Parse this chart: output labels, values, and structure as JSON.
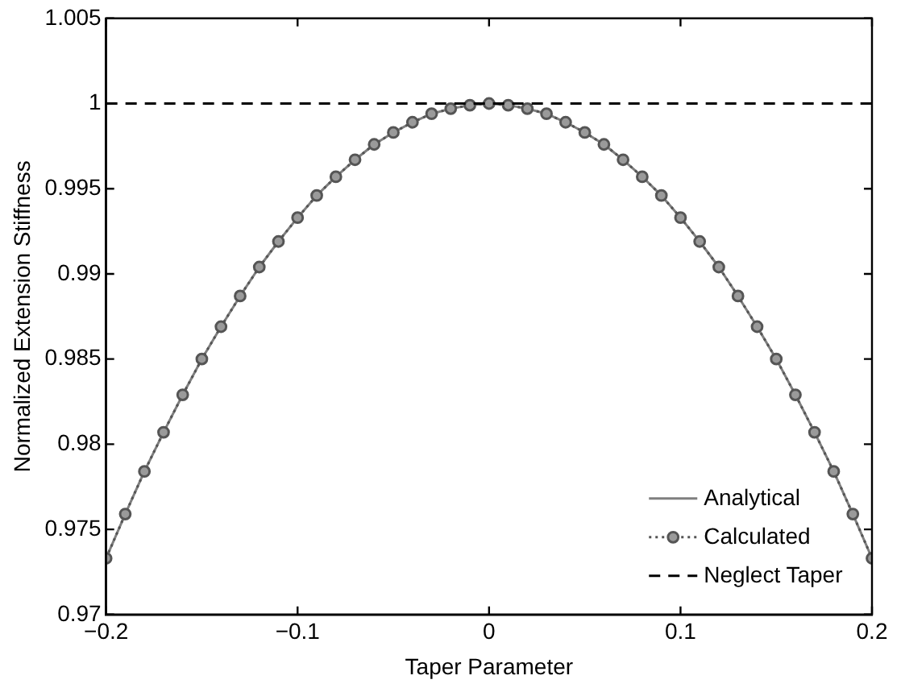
{
  "chart_data": {
    "type": "line",
    "xlabel": "Taper Parameter",
    "ylabel": "Normalized Extension Stiffness",
    "x": [
      -0.2,
      -0.19,
      -0.18,
      -0.17,
      -0.16,
      -0.15,
      -0.14,
      -0.13,
      -0.12,
      -0.11,
      -0.1,
      -0.09,
      -0.08,
      -0.07,
      -0.06,
      -0.05,
      -0.04,
      -0.03,
      -0.02,
      -0.01,
      0,
      0.01,
      0.02,
      0.03,
      0.04,
      0.05,
      0.06,
      0.07,
      0.08,
      0.09,
      0.1,
      0.11,
      0.12,
      0.13,
      0.14,
      0.15,
      0.16,
      0.17,
      0.18,
      0.19,
      0.2
    ],
    "series": [
      {
        "name": "Analytical",
        "color": "#7f7f7f",
        "marker": "none",
        "line_style": "solid",
        "values": [
          0.9733,
          0.9759,
          0.9784,
          0.9807,
          0.9829,
          0.985,
          0.9869,
          0.9887,
          0.9904,
          0.9919,
          0.9933,
          0.9946,
          0.9957,
          0.9967,
          0.9976,
          0.9983,
          0.9989,
          0.9994,
          0.9997,
          0.9999,
          1,
          0.9999,
          0.9997,
          0.9994,
          0.9989,
          0.9983,
          0.9976,
          0.9967,
          0.9957,
          0.9946,
          0.9933,
          0.9919,
          0.9904,
          0.9887,
          0.9869,
          0.985,
          0.9829,
          0.9807,
          0.9784,
          0.9759,
          0.9733
        ]
      },
      {
        "name": "Calculated",
        "color": "#555555",
        "marker": "circle",
        "line_style": "dotted",
        "values": [
          0.9733,
          0.9759,
          0.9784,
          0.9807,
          0.9829,
          0.985,
          0.9869,
          0.9887,
          0.9904,
          0.9919,
          0.9933,
          0.9946,
          0.9957,
          0.9967,
          0.9976,
          0.9983,
          0.9989,
          0.9994,
          0.9997,
          0.9999,
          1,
          0.9999,
          0.9997,
          0.9994,
          0.9989,
          0.9983,
          0.9976,
          0.9967,
          0.9957,
          0.9946,
          0.9933,
          0.9919,
          0.9904,
          0.9887,
          0.9869,
          0.985,
          0.9829,
          0.9807,
          0.9784,
          0.9759,
          0.9733
        ]
      },
      {
        "name": "Neglect Taper",
        "color": "#000000",
        "marker": "none",
        "line_style": "dashed",
        "x": [
          -0.2,
          0.2
        ],
        "values": [
          1,
          1
        ]
      }
    ],
    "xlim": [
      -0.2,
      0.2
    ],
    "xticks": [
      {
        "value": -0.2,
        "label": "−0.2"
      },
      {
        "value": -0.1,
        "label": "−0.1"
      },
      0,
      0.1,
      0.2
    ],
    "ylim": [
      0.97,
      1.005
    ],
    "yticks": [
      0.97,
      0.975,
      0.98,
      0.985,
      0.99,
      0.995,
      1,
      1.005
    ],
    "grid": false,
    "legend": "bottom right"
  }
}
